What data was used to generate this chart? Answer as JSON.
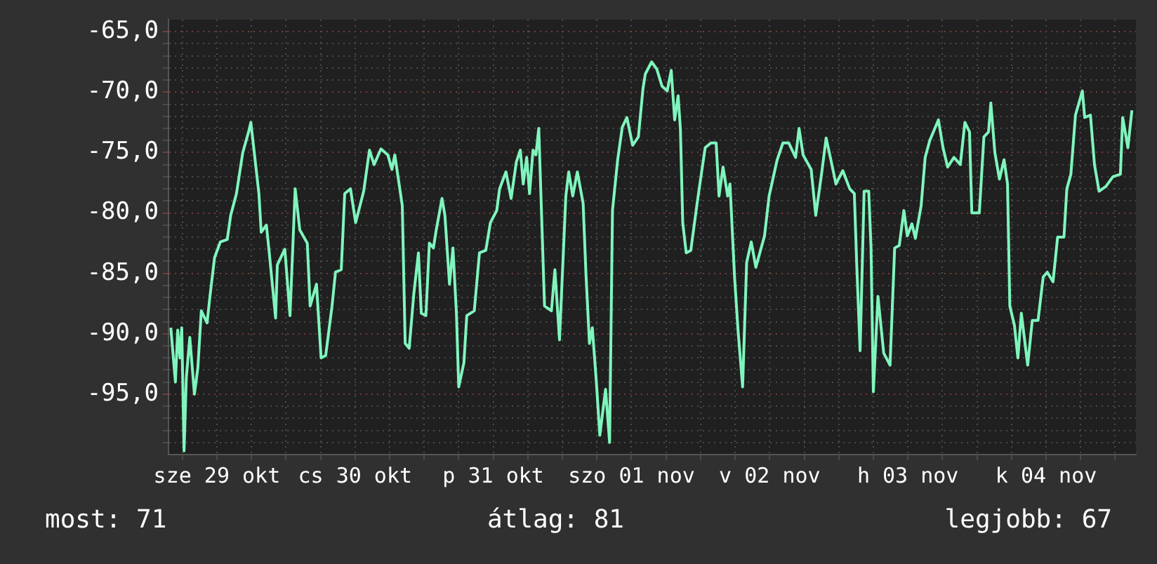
{
  "chart_data": {
    "type": "line",
    "color": "#7ff5bd",
    "legend": false,
    "grid": true,
    "marker": "none",
    "line_style": "solid",
    "annotations": [
      "most: 71",
      "átlag: 81",
      "legjobb: 67"
    ],
    "xlim": [
      "--10-29T03:36",
      "--11-05T03:36"
    ],
    "xticks": [
      {
        "value": "--10-29T06:00",
        "label": null
      },
      {
        "value": "--10-29T12:00",
        "label": "sze 29 okt"
      },
      {
        "value": "--10-29T18:00",
        "label": null
      },
      {
        "value": "--10-30T00:00",
        "label": null
      },
      {
        "value": "--10-30T06:00",
        "label": null
      },
      {
        "value": "--10-30T12:00",
        "label": "cs 30 okt"
      },
      {
        "value": "--10-30T18:00",
        "label": null
      },
      {
        "value": "--10-31T00:00",
        "label": null
      },
      {
        "value": "--10-31T06:00",
        "label": null
      },
      {
        "value": "--10-31T12:00",
        "label": "p 31 okt"
      },
      {
        "value": "--10-31T18:00",
        "label": null
      },
      {
        "value": "--11-01T00:00",
        "label": null
      },
      {
        "value": "--11-01T06:00",
        "label": null
      },
      {
        "value": "--11-01T12:00",
        "label": "szo 01 nov"
      },
      {
        "value": "--11-01T18:00",
        "label": null
      },
      {
        "value": "--11-02T00:00",
        "label": null
      },
      {
        "value": "--11-02T06:00",
        "label": null
      },
      {
        "value": "--11-02T12:00",
        "label": "v 02 nov"
      },
      {
        "value": "--11-02T18:00",
        "label": null
      },
      {
        "value": "--11-03T00:00",
        "label": null
      },
      {
        "value": "--11-03T06:00",
        "label": null
      },
      {
        "value": "--11-03T12:00",
        "label": "h 03 nov"
      },
      {
        "value": "--11-03T18:00",
        "label": null
      },
      {
        "value": "--11-04T00:00",
        "label": null
      },
      {
        "value": "--11-04T06:00",
        "label": null
      },
      {
        "value": "--11-04T12:00",
        "label": "k 04 nov"
      },
      {
        "value": "--11-04T18:00",
        "label": null
      },
      {
        "value": "--11-05T00:00",
        "label": null
      }
    ],
    "ylim": [
      -100,
      -64
    ],
    "yticks": [
      {
        "value": -99,
        "label": null
      },
      {
        "value": -98,
        "label": null
      },
      {
        "value": -97,
        "label": null
      },
      {
        "value": -96,
        "label": null
      },
      {
        "value": -95,
        "label": "-95,0"
      },
      {
        "value": -94,
        "label": null
      },
      {
        "value": -93,
        "label": null
      },
      {
        "value": -92,
        "label": null
      },
      {
        "value": -91,
        "label": null
      },
      {
        "value": -90,
        "label": "-90,0"
      },
      {
        "value": -89,
        "label": null
      },
      {
        "value": -88,
        "label": null
      },
      {
        "value": -87,
        "label": null
      },
      {
        "value": -86,
        "label": null
      },
      {
        "value": -85,
        "label": "-85,0"
      },
      {
        "value": -84,
        "label": null
      },
      {
        "value": -83,
        "label": null
      },
      {
        "value": -82,
        "label": null
      },
      {
        "value": -81,
        "label": null
      },
      {
        "value": -80,
        "label": "-80,0"
      },
      {
        "value": -79,
        "label": null
      },
      {
        "value": -78,
        "label": null
      },
      {
        "value": -77,
        "label": null
      },
      {
        "value": -76,
        "label": null
      },
      {
        "value": -75,
        "label": "-75,0"
      },
      {
        "value": -74,
        "label": null
      },
      {
        "value": -73,
        "label": null
      },
      {
        "value": -72,
        "label": null
      },
      {
        "value": -71,
        "label": null
      },
      {
        "value": -70,
        "label": "-70,0"
      },
      {
        "value": -69,
        "label": null
      },
      {
        "value": -68,
        "label": null
      },
      {
        "value": -67,
        "label": null
      },
      {
        "value": -66,
        "label": null
      },
      {
        "value": -65,
        "label": "-65,0"
      }
    ],
    "x": [
      "--10-29T04:00",
      "--10-29T04:48",
      "--10-29T05:12",
      "--10-29T05:36",
      "--10-29T05:54",
      "--10-29T06:18",
      "--10-29T06:42",
      "--10-29T07:18",
      "--10-29T08:06",
      "--10-29T08:42",
      "--10-29T09:18",
      "--10-29T10:18",
      "--10-29T10:48",
      "--10-29T11:36",
      "--10-29T12:36",
      "--10-29T13:48",
      "--10-29T14:24",
      "--10-29T15:24",
      "--10-29T16:30",
      "--10-29T17:30",
      "--10-29T17:54",
      "--10-29T18:24",
      "--10-29T19:18",
      "--10-29T19:42",
      "--10-29T20:36",
      "--10-29T21:06",
      "--10-29T22:12",
      "--10-29T22:30",
      "--10-29T23:48",
      "--10-30T00:42",
      "--10-30T01:36",
      "--10-30T02:24",
      "--10-30T03:42",
      "--10-30T04:12",
      "--10-30T05:18",
      "--10-30T06:06",
      "--10-30T06:54",
      "--10-30T08:00",
      "--10-30T08:36",
      "--10-30T09:36",
      "--10-30T10:12",
      "--10-30T11:12",
      "--10-30T12:06",
      "--10-30T13:30",
      "--10-30T14:30",
      "--10-30T15:18",
      "--10-30T16:30",
      "--10-30T17:42",
      "--10-30T18:24",
      "--10-30T18:54",
      "--10-30T20:12",
      "--10-30T20:42",
      "--10-30T21:24",
      "--10-30T22:12",
      "--10-30T23:00",
      "--10-30T23:30",
      "--10-31T00:18",
      "--10-31T00:54",
      "--10-31T01:36",
      "--10-31T02:06",
      "--10-31T03:06",
      "--10-31T03:36",
      "--10-31T04:24",
      "--10-31T05:00",
      "--10-31T05:36",
      "--10-31T06:00",
      "--10-31T06:54",
      "--10-31T07:24",
      "--10-31T08:42",
      "--10-31T09:36",
      "--10-31T10:42",
      "--10-31T11:30",
      "--10-31T12:36",
      "--10-31T13:06",
      "--10-31T14:12",
      "--10-31T15:06",
      "--10-31T16:00",
      "--10-31T16:42",
      "--10-31T17:12",
      "--10-31T17:48",
      "--10-31T18:18",
      "--10-31T18:54",
      "--10-31T19:24",
      "--10-31T19:54",
      "--10-31T20:12",
      "--10-31T20:54",
      "--10-31T22:06",
      "--10-31T22:42",
      "--10-31T23:30",
      "--11-01T00:36",
      "--11-01T01:06",
      "--11-01T01:48",
      "--11-01T02:36",
      "--11-01T03:36",
      "--11-01T04:06",
      "--11-01T04:42",
      "--11-01T05:12",
      "--11-01T05:54",
      "--11-01T06:30",
      "--11-01T07:30",
      "--11-01T08:12",
      "--11-01T08:42",
      "--11-01T09:36",
      "--11-01T10:24",
      "--11-01T11:12",
      "--11-01T12:12",
      "--11-01T13:12",
      "--11-01T14:00",
      "--11-01T14:24",
      "--11-01T15:30",
      "--11-01T16:24",
      "--11-01T17:18",
      "--11-01T18:12",
      "--11-01T18:54",
      "--11-01T19:30",
      "--11-01T20:06",
      "--11-01T20:30",
      "--11-01T20:54",
      "--11-01T21:30",
      "--11-01T22:18",
      "--11-01T23:24",
      "--11-02T00:00",
      "--11-02T00:48",
      "--11-02T01:48",
      "--11-02T02:42",
      "--11-02T03:12",
      "--11-02T03:54",
      "--11-02T04:42",
      "--11-02T05:06",
      "--11-02T05:54",
      "--11-02T06:30",
      "--11-02T07:18",
      "--11-02T08:00",
      "--11-02T08:48",
      "--11-02T09:36",
      "--11-02T11:06",
      "--11-02T11:54",
      "--11-02T13:18",
      "--11-02T14:18",
      "--11-02T15:18",
      "--11-02T16:30",
      "--11-02T17:06",
      "--11-02T17:48",
      "--11-02T19:12",
      "--11-02T20:00",
      "--11-02T21:00",
      "--11-02T21:48",
      "--11-02T22:48",
      "--11-02T23:30",
      "--11-03T00:42",
      "--11-03T01:54",
      "--11-03T02:42",
      "--11-03T03:06",
      "--11-03T03:42",
      "--11-03T04:24",
      "--11-03T05:12",
      "--11-03T05:36",
      "--11-03T06:00",
      "--11-03T06:48",
      "--11-03T07:48",
      "--11-03T08:54",
      "--11-03T09:42",
      "--11-03T10:30",
      "--11-03T11:18",
      "--11-03T11:54",
      "--11-03T12:42",
      "--11-03T13:18",
      "--11-03T14:18",
      "--11-03T15:00",
      "--11-03T15:48",
      "--11-03T17:18",
      "--11-03T18:06",
      "--11-03T18:54",
      "--11-03T20:00",
      "--11-03T21:06",
      "--11-03T21:54",
      "--11-03T22:42",
      "--11-03T23:06",
      "--11-04T00:24",
      "--11-04T01:12",
      "--11-04T02:00",
      "--11-04T02:24",
      "--11-04T03:06",
      "--11-04T03:54",
      "--11-04T04:42",
      "--11-04T05:18",
      "--11-04T05:42",
      "--11-04T06:30",
      "--11-04T07:06",
      "--11-04T07:42",
      "--11-04T08:48",
      "--11-04T09:36",
      "--11-04T10:36",
      "--11-04T11:30",
      "--11-04T12:12",
      "--11-04T13:12",
      "--11-04T14:00",
      "--11-04T15:06",
      "--11-04T15:36",
      "--11-04T16:18",
      "--11-04T17:06",
      "--11-04T18:18",
      "--11-04T18:42",
      "--11-04T19:42",
      "--11-04T20:24",
      "--11-04T21:12",
      "--11-04T22:24",
      "--11-04T23:36",
      "--11-05T00:54",
      "--11-05T01:18",
      "--11-05T02:12",
      "--11-05T02:54"
    ],
    "values": [
      -89.5,
      -94.0,
      -89.7,
      -92.0,
      -89.5,
      -99.7,
      -93.6,
      -90.3,
      -95.0,
      -92.8,
      -88.1,
      -89.1,
      -86.9,
      -83.7,
      -82.4,
      -82.2,
      -80.2,
      -78.4,
      -75.0,
      -73.3,
      -72.5,
      -74.6,
      -78.4,
      -81.6,
      -81.0,
      -83.3,
      -88.7,
      -84.3,
      -83.0,
      -88.5,
      -78.0,
      -81.4,
      -82.5,
      -87.7,
      -85.9,
      -92.0,
      -91.8,
      -87.7,
      -84.9,
      -84.7,
      -78.4,
      -78.0,
      -80.8,
      -78.2,
      -74.8,
      -76.0,
      -74.7,
      -75.2,
      -76.4,
      -75.2,
      -79.4,
      -90.8,
      -91.2,
      -86.7,
      -83.3,
      -88.3,
      -88.5,
      -82.5,
      -82.9,
      -81.4,
      -78.8,
      -80.2,
      -85.9,
      -82.9,
      -88.3,
      -94.4,
      -92.4,
      -88.5,
      -88.1,
      -83.3,
      -83.1,
      -80.8,
      -79.8,
      -78.0,
      -76.6,
      -78.8,
      -75.8,
      -74.8,
      -77.6,
      -75.4,
      -78.4,
      -74.8,
      -75.2,
      -73.0,
      -77.4,
      -87.7,
      -88.1,
      -84.7,
      -90.5,
      -78.6,
      -76.6,
      -78.6,
      -76.6,
      -79.2,
      -85.1,
      -90.8,
      -89.5,
      -94.0,
      -98.4,
      -94.6,
      -99.0,
      -79.8,
      -75.6,
      -72.9,
      -72.1,
      -74.4,
      -73.7,
      -69.7,
      -68.5,
      -67.5,
      -68.1,
      -69.5,
      -69.9,
      -68.2,
      -72.3,
      -70.3,
      -73.1,
      -80.8,
      -83.3,
      -83.1,
      -79.2,
      -77.2,
      -74.6,
      -74.2,
      -74.2,
      -78.6,
      -76.2,
      -78.6,
      -77.6,
      -85.3,
      -89.7,
      -94.4,
      -84.1,
      -82.4,
      -84.5,
      -81.9,
      -78.6,
      -75.6,
      -74.2,
      -74.2,
      -75.4,
      -73.0,
      -75.2,
      -76.4,
      -80.2,
      -76.8,
      -73.8,
      -76.0,
      -77.6,
      -76.5,
      -78.0,
      -78.4,
      -84.1,
      -91.4,
      -78.2,
      -78.2,
      -82.9,
      -94.8,
      -86.9,
      -91.6,
      -92.6,
      -82.9,
      -82.7,
      -79.8,
      -81.9,
      -80.9,
      -82.1,
      -79.4,
      -75.4,
      -74.0,
      -72.3,
      -74.6,
      -76.2,
      -75.4,
      -76.0,
      -72.5,
      -73.3,
      -80.0,
      -80.0,
      -73.7,
      -73.3,
      -70.9,
      -75.0,
      -77.2,
      -75.6,
      -77.6,
      -87.7,
      -89.3,
      -92.0,
      -88.3,
      -92.6,
      -88.9,
      -88.9,
      -85.3,
      -84.9,
      -85.7,
      -82.0,
      -82.0,
      -78.0,
      -76.8,
      -71.9,
      -69.9,
      -72.1,
      -71.9,
      -76.0,
      -78.2,
      -77.8,
      -77.0,
      -76.8,
      -72.1,
      -74.6,
      -71.5
    ]
  }
}
